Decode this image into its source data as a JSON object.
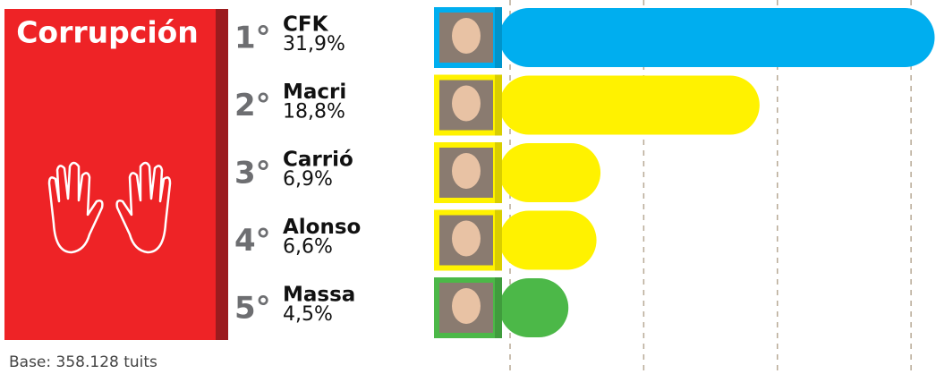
{
  "chart_data": {
    "type": "bar",
    "title": "Corrupción",
    "ranks": [
      "1°",
      "2°",
      "3°",
      "4°",
      "5°"
    ],
    "categories": [
      "CFK",
      "Macri",
      "Carrió",
      "Alonso",
      "Massa"
    ],
    "values": [
      31.9,
      18.8,
      6.9,
      6.6,
      4.5
    ],
    "value_labels": [
      "31,9%",
      "18,8%",
      "6,9%",
      "6,6%",
      "4,5%"
    ],
    "colors": [
      "#00aeef",
      "#fff200",
      "#fff200",
      "#fff200",
      "#4cb848"
    ],
    "xlim": [
      0,
      32
    ],
    "xticks": [
      0,
      10,
      20,
      30
    ],
    "grid": true,
    "footnote": "Base: 358.128 tuits"
  }
}
